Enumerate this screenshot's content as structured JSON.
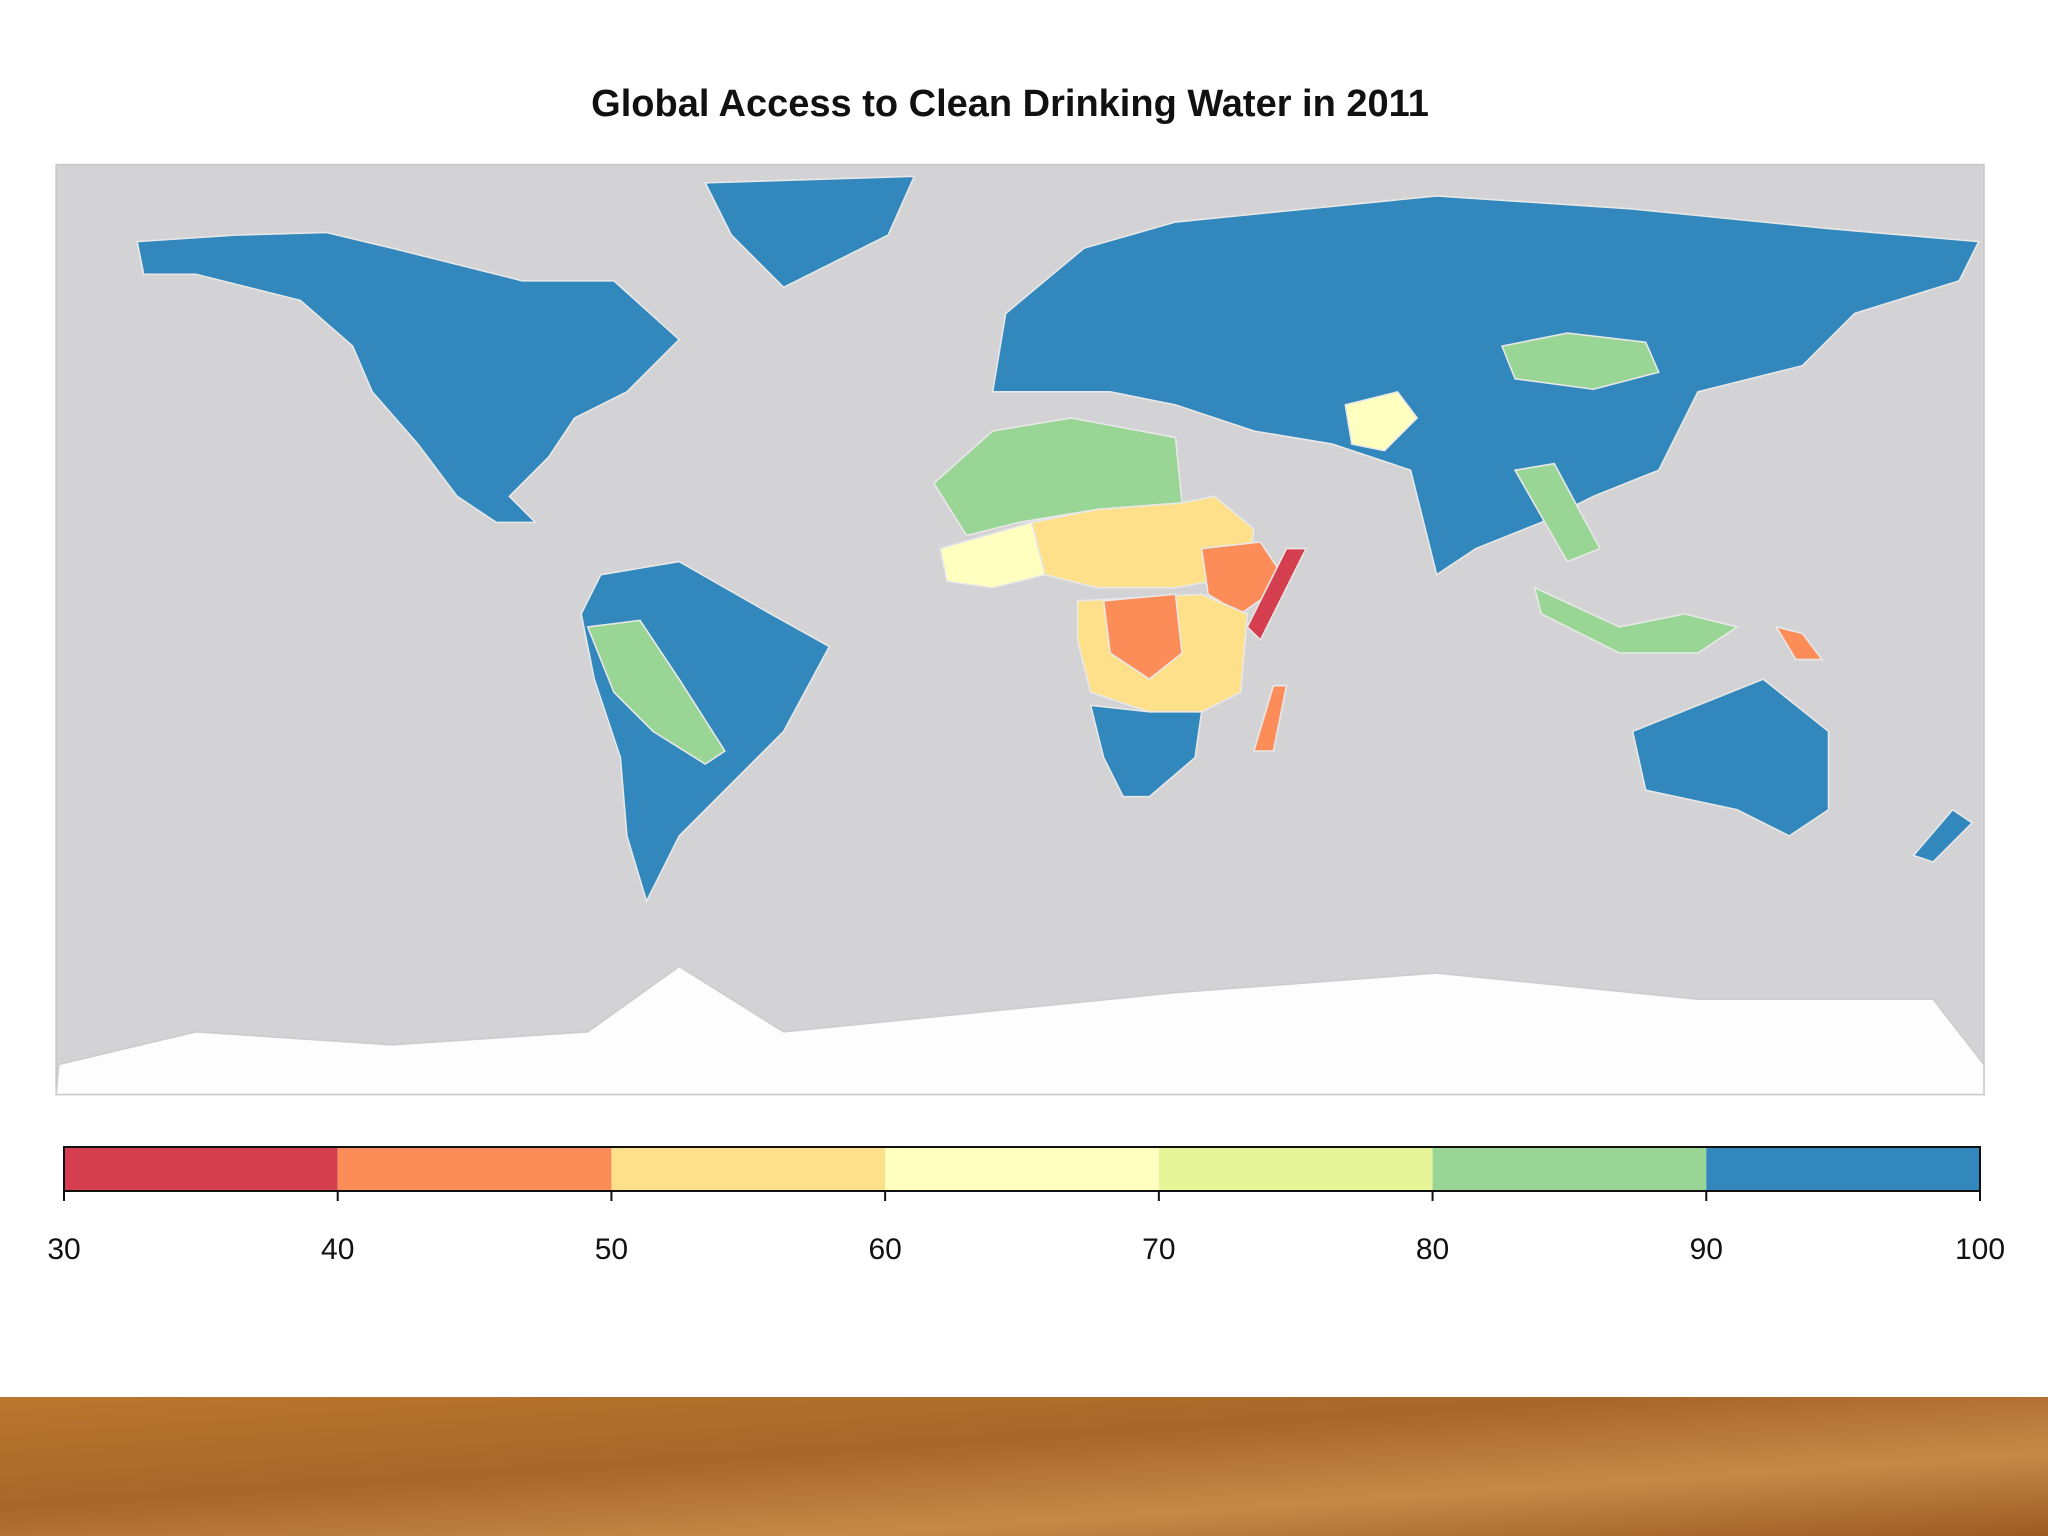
{
  "chart_data": {
    "type": "choropleth",
    "title": "Global Access to Clean Drinking Water in 2011",
    "bins": [
      30,
      40,
      50,
      60,
      70,
      80,
      90,
      100
    ],
    "colors": [
      "#d53e4f",
      "#fc8d59",
      "#fee08b",
      "#ffffbf",
      "#e6f598",
      "#99d594",
      "#3288bd"
    ]
  }
}
